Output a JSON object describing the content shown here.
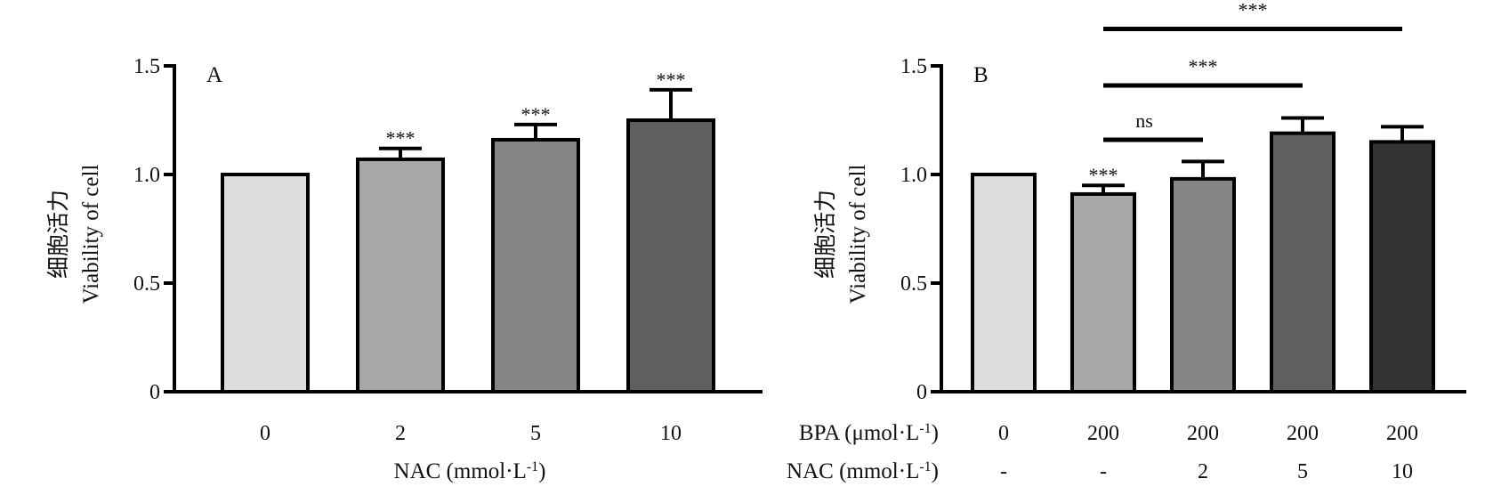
{
  "chart_data": [
    {
      "type": "bar",
      "panel_label": "A",
      "categories": [
        "0",
        "2",
        "5",
        "10"
      ],
      "values": [
        1.0,
        1.07,
        1.16,
        1.25
      ],
      "errors": [
        0.0,
        0.05,
        0.07,
        0.14
      ],
      "bar_colors": [
        "#dcdedc",
        "#a8a7a8",
        "#868584",
        "#615f5d"
      ],
      "significance": [
        "",
        "***",
        "***",
        "***"
      ],
      "ylabel_cn": "细胞活力",
      "ylabel": "Viability of cell",
      "xlabel": "NAC (mmol·L-1)",
      "yticks": [
        "0",
        "0.5",
        "1.0",
        "1.5"
      ],
      "ylim": [
        0,
        1.5
      ]
    },
    {
      "type": "bar",
      "panel_label": "B",
      "row_labels": [
        "BPA (μmol·L-1)",
        "NAC (mmol·L-1)"
      ],
      "categories": [
        {
          "bpa": "0",
          "nac": "-"
        },
        {
          "bpa": "200",
          "nac": "-"
        },
        {
          "bpa": "200",
          "nac": "2"
        },
        {
          "bpa": "200",
          "nac": "5"
        },
        {
          "bpa": "200",
          "nac": "10"
        }
      ],
      "values": [
        1.0,
        0.91,
        0.98,
        1.19,
        1.15
      ],
      "errors": [
        0.0,
        0.04,
        0.08,
        0.07,
        0.07
      ],
      "bar_colors": [
        "#dcdedc",
        "#a8a7a8",
        "#868584",
        "#615f5d",
        "#333333"
      ],
      "significance": [
        "",
        "***",
        "",
        "",
        ""
      ],
      "brackets": [
        {
          "from": 1,
          "to": 2,
          "label": "ns",
          "y": 1.16
        },
        {
          "from": 1,
          "to": 3,
          "label": "***",
          "y": 1.41
        },
        {
          "from": 1,
          "to": 4,
          "label": "***",
          "y": 1.67
        }
      ],
      "ylabel_cn": "细胞活力",
      "ylabel": "Viability of cell",
      "yticks": [
        "0",
        "0.5",
        "1.0",
        "1.5"
      ],
      "ylim": [
        0,
        1.5
      ]
    }
  ]
}
